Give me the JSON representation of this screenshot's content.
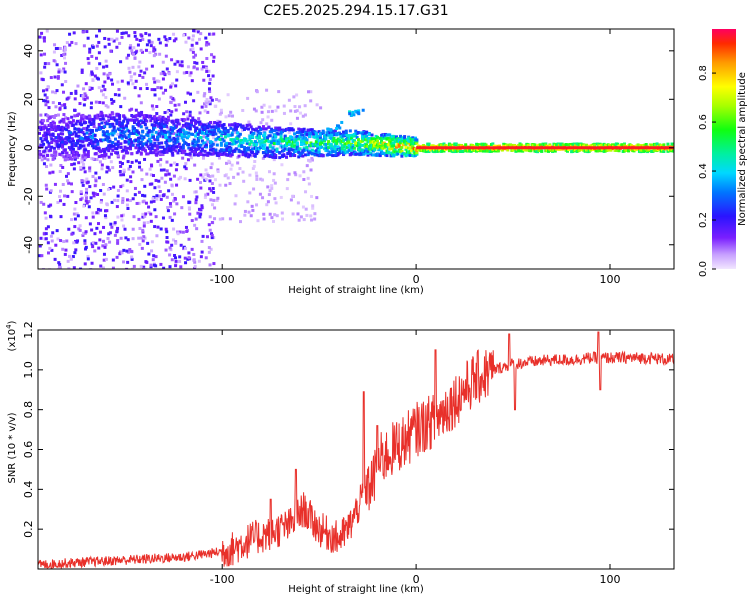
{
  "title": "C2E5.2025.294.15.17.G31",
  "chart_data": [
    {
      "type": "heatmap",
      "name": "spectrogram",
      "xlabel": "Height of straight line (km)",
      "ylabel": "Frequency (Hz)",
      "xlim": [
        -195,
        133
      ],
      "ylim": [
        -50,
        49
      ],
      "xticks": [
        -100,
        0,
        100
      ],
      "yticks": [
        -40,
        -20,
        0,
        20,
        40
      ],
      "colorbar": {
        "label": "Normalized spectral amplitude",
        "range": [
          0.0,
          0.98
        ],
        "ticks": [
          0.0,
          0.2,
          0.4,
          0.6,
          0.8
        ]
      },
      "ridge": [
        {
          "x": -190,
          "freq": 4,
          "amp": 0.25
        },
        {
          "x": -170,
          "freq": 5,
          "amp": 0.35
        },
        {
          "x": -150,
          "freq": 6,
          "amp": 0.4
        },
        {
          "x": -130,
          "freq": 5,
          "amp": 0.4
        },
        {
          "x": -110,
          "freq": 4,
          "amp": 0.45
        },
        {
          "x": -90,
          "freq": 3,
          "amp": 0.5
        },
        {
          "x": -70,
          "freq": 2,
          "amp": 0.55
        },
        {
          "x": -50,
          "freq": 2,
          "amp": 0.6
        },
        {
          "x": -30,
          "freq": 2,
          "amp": 0.7
        },
        {
          "x": -15,
          "freq": 1,
          "amp": 0.85
        },
        {
          "x": 0,
          "freq": 0,
          "amp": 0.95
        },
        {
          "x": 50,
          "freq": 0,
          "amp": 0.98
        },
        {
          "x": 100,
          "freq": 0,
          "amp": 0.98
        },
        {
          "x": 133,
          "freq": 0,
          "amp": 0.98
        }
      ],
      "branch": [
        {
          "x": -46,
          "freq": 7
        },
        {
          "x": -40,
          "freq": 10
        },
        {
          "x": -34,
          "freq": 14
        },
        {
          "x": -30,
          "freq": 16
        }
      ]
    },
    {
      "type": "line",
      "name": "snr",
      "xlabel": "Height of straight line (km)",
      "ylabel": "SNR (10 * v/v)",
      "scale_label": "(x10",
      "scale_exp": "4",
      "scale_close": ")",
      "xlim": [
        -195,
        133
      ],
      "ylim": [
        0,
        1.2
      ],
      "xticks": [
        -100,
        0,
        100
      ],
      "yticks": [
        0.2,
        0.4,
        0.6,
        0.8,
        1.0,
        1.2
      ],
      "ytick_labels": [
        "0.2",
        "0.4",
        "0.6",
        "0.8",
        "1.0",
        "1.2"
      ],
      "color": "#e8302a",
      "series": [
        {
          "x": -195,
          "y": 0.02
        },
        {
          "x": -180,
          "y": 0.03
        },
        {
          "x": -160,
          "y": 0.04
        },
        {
          "x": -140,
          "y": 0.05
        },
        {
          "x": -120,
          "y": 0.06
        },
        {
          "x": -105,
          "y": 0.08
        },
        {
          "x": -95,
          "y": 0.1
        },
        {
          "x": -85,
          "y": 0.15
        },
        {
          "x": -75,
          "y": 0.18
        },
        {
          "x": -65,
          "y": 0.22
        },
        {
          "x": -58,
          "y": 0.3
        },
        {
          "x": -50,
          "y": 0.2
        },
        {
          "x": -40,
          "y": 0.15
        },
        {
          "x": -35,
          "y": 0.2
        },
        {
          "x": -28,
          "y": 0.35
        },
        {
          "x": -22,
          "y": 0.45
        },
        {
          "x": -18,
          "y": 0.55
        },
        {
          "x": -12,
          "y": 0.6
        },
        {
          "x": -5,
          "y": 0.65
        },
        {
          "x": 0,
          "y": 0.7
        },
        {
          "x": 10,
          "y": 0.75
        },
        {
          "x": 20,
          "y": 0.85
        },
        {
          "x": 30,
          "y": 0.95
        },
        {
          "x": 40,
          "y": 1.0
        },
        {
          "x": 50,
          "y": 1.03
        },
        {
          "x": 60,
          "y": 1.04
        },
        {
          "x": 70,
          "y": 1.05
        },
        {
          "x": 80,
          "y": 1.05
        },
        {
          "x": 90,
          "y": 1.06
        },
        {
          "x": 100,
          "y": 1.06
        },
        {
          "x": 110,
          "y": 1.06
        },
        {
          "x": 120,
          "y": 1.06
        },
        {
          "x": 133,
          "y": 1.05
        }
      ],
      "spikes": [
        {
          "x": -75,
          "y": 0.35
        },
        {
          "x": -62,
          "y": 0.5
        },
        {
          "x": -27,
          "y": 0.89
        },
        {
          "x": -20,
          "y": 0.72
        },
        {
          "x": 10,
          "y": 1.1
        },
        {
          "x": 48,
          "y": 1.18
        },
        {
          "x": 51,
          "y": 0.8
        },
        {
          "x": 94,
          "y": 1.19
        },
        {
          "x": 95,
          "y": 0.9
        }
      ]
    }
  ]
}
